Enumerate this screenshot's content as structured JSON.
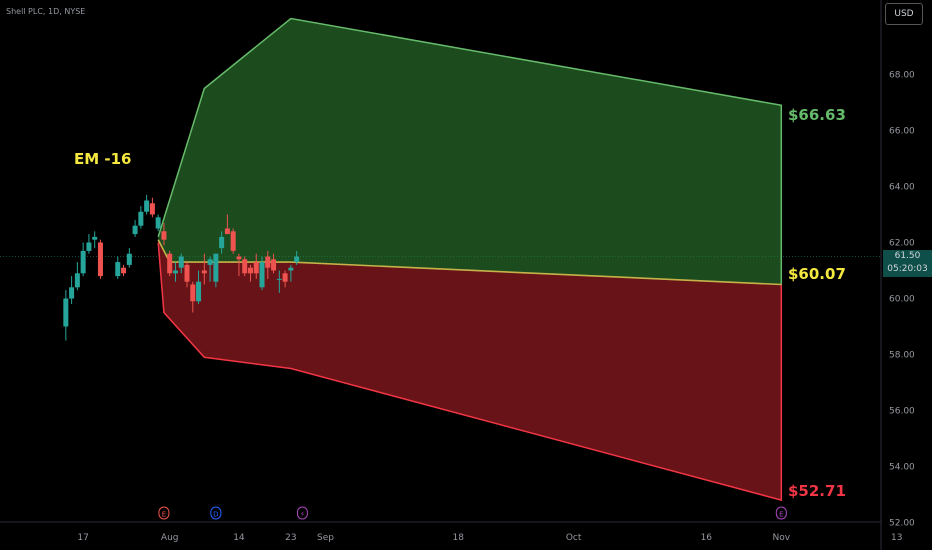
{
  "header": {
    "symbol_title": "Shell PLC, 1D, NYSE"
  },
  "toolbar": {
    "currency_label": "USD"
  },
  "price_tag": {
    "price": "61.50",
    "countdown": "05:20:03"
  },
  "annotations": {
    "em_label": "EM -16",
    "upper_target": "$66.63",
    "mid_target": "$60.07",
    "lower_target": "$52.71"
  },
  "colors": {
    "up": "#26a69a",
    "down": "#ef5350",
    "upper_band_fill": "#2e7d32",
    "upper_band_line": "#66bb6a",
    "lower_band_fill": "#8b1a1f",
    "lower_band_line": "#f23645",
    "mid_line": "#c5b34a",
    "label_yellow": "#f5e93f"
  },
  "chart_data": {
    "type": "candlestick",
    "y_axis": {
      "ticks": [
        "52.00",
        "54.00",
        "56.00",
        "58.00",
        "60.00",
        "62.00",
        "64.00",
        "66.00",
        "68.00"
      ],
      "range": [
        52,
        70
      ],
      "position": "right"
    },
    "x_axis": {
      "ticks": [
        "17",
        "Aug",
        "14",
        "23",
        "Sep",
        "18",
        "Oct",
        "16",
        "Nov",
        "13"
      ],
      "tick_day_index": [
        -5,
        10,
        22,
        31,
        37,
        60,
        80,
        103,
        116,
        136
      ]
    },
    "candles": [
      {
        "d": -8,
        "o": 59.0,
        "h": 60.3,
        "l": 58.5,
        "c": 60.0
      },
      {
        "d": -7,
        "o": 60.0,
        "h": 60.8,
        "l": 59.8,
        "c": 60.4
      },
      {
        "d": -6,
        "o": 60.4,
        "h": 61.3,
        "l": 60.3,
        "c": 60.9
      },
      {
        "d": -5,
        "o": 60.9,
        "h": 62.0,
        "l": 60.8,
        "c": 61.7
      },
      {
        "d": -4,
        "o": 61.7,
        "h": 62.3,
        "l": 61.6,
        "c": 62.0
      },
      {
        "d": -3,
        "o": 62.1,
        "h": 62.4,
        "l": 61.8,
        "c": 62.2
      },
      {
        "d": -2,
        "o": 62.0,
        "h": 62.1,
        "l": 60.7,
        "c": 60.8
      },
      {
        "d": 1,
        "o": 60.8,
        "h": 61.5,
        "l": 60.7,
        "c": 61.3
      },
      {
        "d": 2,
        "o": 61.1,
        "h": 61.2,
        "l": 60.8,
        "c": 60.9
      },
      {
        "d": 3,
        "o": 61.2,
        "h": 61.8,
        "l": 61.1,
        "c": 61.6
      },
      {
        "d": 4,
        "o": 62.3,
        "h": 62.8,
        "l": 62.2,
        "c": 62.6
      },
      {
        "d": 5,
        "o": 62.6,
        "h": 63.3,
        "l": 62.5,
        "c": 63.1
      },
      {
        "d": 6,
        "o": 63.1,
        "h": 63.7,
        "l": 63.0,
        "c": 63.5
      },
      {
        "d": 7,
        "o": 63.4,
        "h": 63.6,
        "l": 62.9,
        "c": 63.0
      },
      {
        "d": 8,
        "o": 62.5,
        "h": 63.0,
        "l": 62.4,
        "c": 62.9
      },
      {
        "d": 9,
        "o": 62.4,
        "h": 62.7,
        "l": 61.9,
        "c": 62.1
      },
      {
        "d": 10,
        "o": 61.6,
        "h": 61.7,
        "l": 60.8,
        "c": 60.9
      },
      {
        "d": 11,
        "o": 60.9,
        "h": 61.3,
        "l": 60.6,
        "c": 61.0
      },
      {
        "d": 12,
        "o": 61.1,
        "h": 61.6,
        "l": 60.9,
        "c": 61.5
      },
      {
        "d": 13,
        "o": 61.2,
        "h": 61.3,
        "l": 60.4,
        "c": 60.6
      },
      {
        "d": 14,
        "o": 60.5,
        "h": 60.6,
        "l": 59.5,
        "c": 59.9
      },
      {
        "d": 15,
        "o": 59.9,
        "h": 61.0,
        "l": 59.8,
        "c": 60.6
      },
      {
        "d": 16,
        "o": 61.0,
        "h": 61.6,
        "l": 60.5,
        "c": 60.9
      },
      {
        "d": 17,
        "o": 61.2,
        "h": 61.5,
        "l": 60.6,
        "c": 61.4
      },
      {
        "d": 18,
        "o": 60.6,
        "h": 61.6,
        "l": 60.4,
        "c": 61.6
      },
      {
        "d": 19,
        "o": 61.8,
        "h": 62.4,
        "l": 61.6,
        "c": 62.2
      },
      {
        "d": 20,
        "o": 62.5,
        "h": 63.0,
        "l": 62.3,
        "c": 62.3
      },
      {
        "d": 21,
        "o": 62.4,
        "h": 62.5,
        "l": 61.6,
        "c": 61.7
      },
      {
        "d": 22,
        "o": 61.5,
        "h": 61.6,
        "l": 60.8,
        "c": 61.4
      },
      {
        "d": 23,
        "o": 61.4,
        "h": 61.5,
        "l": 60.8,
        "c": 60.9
      },
      {
        "d": 24,
        "o": 61.1,
        "h": 61.2,
        "l": 60.6,
        "c": 60.9
      },
      {
        "d": 25,
        "o": 61.3,
        "h": 61.6,
        "l": 60.7,
        "c": 60.9
      },
      {
        "d": 26,
        "o": 60.4,
        "h": 61.5,
        "l": 60.3,
        "c": 61.3
      },
      {
        "d": 27,
        "o": 61.5,
        "h": 61.7,
        "l": 60.7,
        "c": 61.1
      },
      {
        "d": 28,
        "o": 61.4,
        "h": 61.6,
        "l": 60.9,
        "c": 61.0
      },
      {
        "d": 29,
        "o": 60.7,
        "h": 61.0,
        "l": 60.2,
        "c": 60.7
      },
      {
        "d": 30,
        "o": 60.9,
        "h": 61.0,
        "l": 60.4,
        "c": 60.6
      },
      {
        "d": 31,
        "o": 61.0,
        "h": 61.2,
        "l": 60.6,
        "c": 61.1
      },
      {
        "d": 32,
        "o": 61.3,
        "h": 61.7,
        "l": 61.2,
        "c": 61.5
      }
    ],
    "upper_band": [
      [
        8,
        62.2
      ],
      [
        16,
        67.5
      ],
      [
        31,
        70.0
      ],
      [
        116,
        66.9
      ]
    ],
    "lower_band": [
      [
        8,
        62.0
      ],
      [
        9,
        59.5
      ],
      [
        16,
        57.9
      ],
      [
        31,
        57.5
      ],
      [
        116,
        52.8
      ]
    ],
    "mid_line": [
      [
        8,
        62.1
      ],
      [
        10,
        61.3
      ],
      [
        31,
        61.3
      ],
      [
        116,
        60.5
      ]
    ],
    "last_price": 61.5,
    "event_markers": [
      {
        "d": 9,
        "label": "E",
        "color": "#ef5350"
      },
      {
        "d": 18,
        "label": "D",
        "color": "#2962ff"
      },
      {
        "d": 33,
        "label": "⚡",
        "color": "#ab47bc"
      },
      {
        "d": 116,
        "label": "E",
        "color": "#ab47bc"
      }
    ]
  }
}
